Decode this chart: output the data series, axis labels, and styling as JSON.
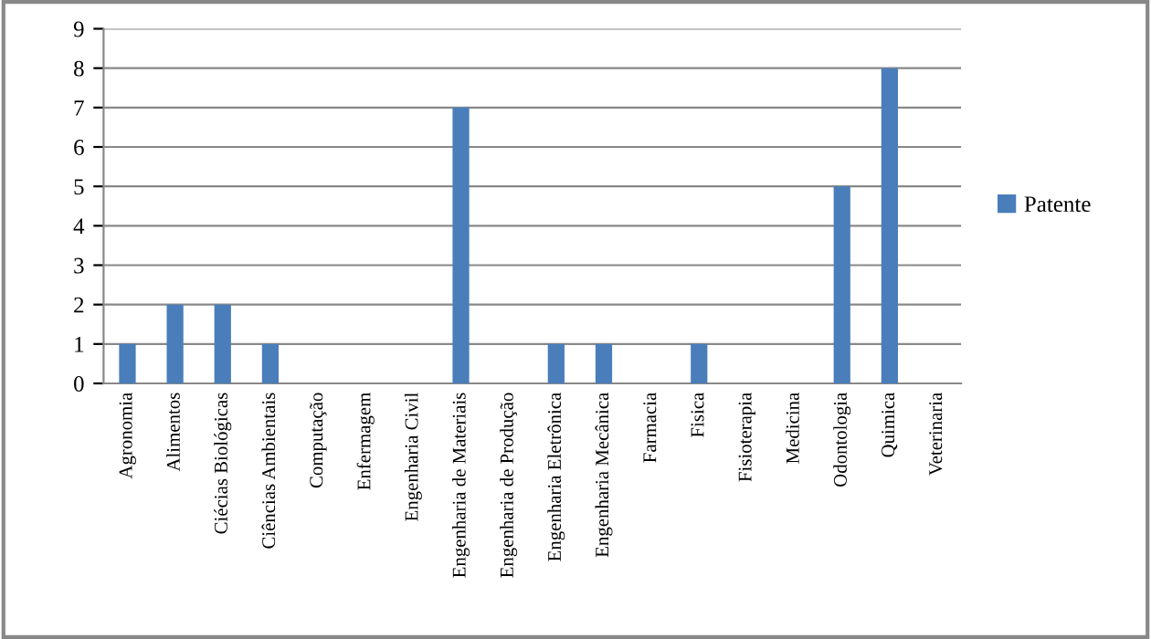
{
  "chart_data": {
    "type": "bar",
    "categories": [
      "Agronomia",
      "Alimentos",
      "Ciécias Biológicas",
      "Ciências Ambientais",
      "Computação",
      "Enfermagem",
      "Engenharia Civil",
      "Engenharia de Materiais",
      "Engenharia de Produção",
      "Engenharia Eletrônica",
      "Engenharia Mecânica",
      "Farmacia",
      "Fisica",
      "Fisioterapia",
      "Medicina",
      "Odontologia",
      "Quimica",
      "Veterinaria"
    ],
    "series": [
      {
        "name": "Patente",
        "color": "#4a7ebb",
        "values": [
          1,
          2,
          2,
          1,
          0,
          0,
          0,
          7,
          0,
          1,
          1,
          0,
          1,
          0,
          0,
          5,
          8,
          0
        ]
      }
    ],
    "ylim": [
      0,
      9
    ],
    "yticks": [
      0,
      1,
      2,
      3,
      4,
      5,
      6,
      7,
      8,
      9
    ],
    "grid": "y",
    "legend": "right"
  }
}
